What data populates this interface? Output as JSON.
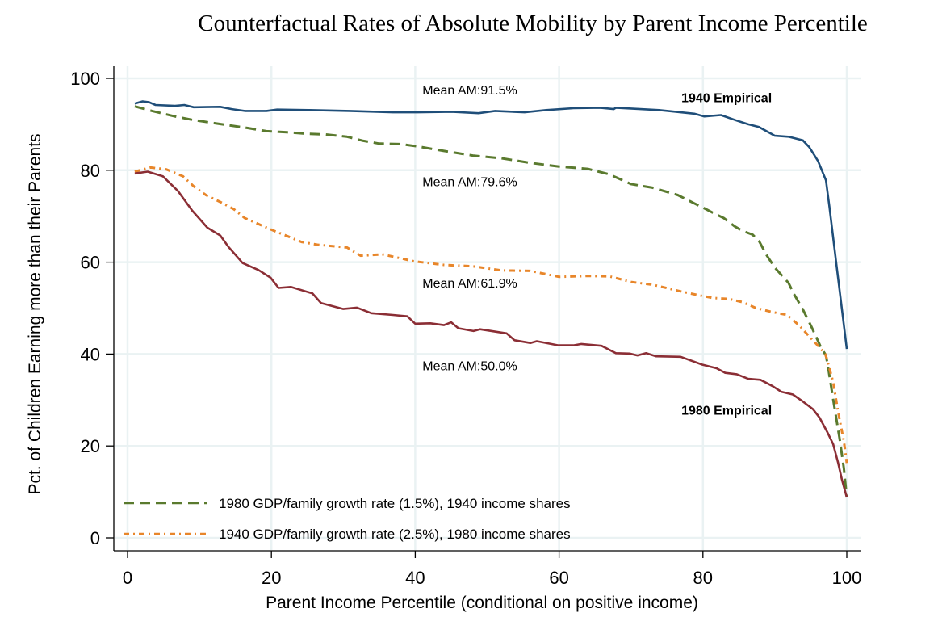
{
  "chart_data": {
    "type": "line",
    "title": "Counterfactual Rates of Absolute Mobility by Parent Income Percentile",
    "xlabel": "Parent Income Percentile (conditional on positive income)",
    "ylabel": "Pct. of Children Earning more than their Parents",
    "xlim": [
      0,
      100
    ],
    "ylim": [
      0,
      100
    ],
    "xticks": [
      0,
      20,
      40,
      60,
      80,
      100
    ],
    "yticks": [
      0,
      20,
      40,
      60,
      80,
      100
    ],
    "xtick_labels": [
      "0",
      "20",
      "40",
      "60",
      "80",
      "100"
    ],
    "ytick_labels": [
      "0",
      "20",
      "40",
      "60",
      "80",
      "100"
    ],
    "grid": true,
    "legend_position": "bottom-left",
    "series": [
      {
        "name": "1940 Empirical",
        "color": "#1f4e79",
        "style": "solid",
        "in_legend": false,
        "x": [
          1,
          2.1,
          3,
          3.9,
          6.6,
          7.9,
          9.2,
          12.9,
          14.5,
          16.3,
          19.3,
          20.8,
          25.3,
          30.9,
          36.9,
          40.3,
          45.1,
          48.8,
          51.1,
          55.2,
          58.2,
          62,
          65.7,
          67.6,
          67.9,
          71.3,
          73.9,
          76.9,
          78.8,
          80.2,
          82.5,
          84.7,
          86.3,
          87.8,
          90,
          91.9,
          93.9,
          94.8,
          96,
          97.1,
          97.6,
          98.6,
          99.3,
          100
        ],
        "y": [
          94.5,
          95.0,
          94.8,
          94.2,
          94.0,
          94.2,
          93.7,
          93.8,
          93.3,
          92.9,
          92.9,
          93.2,
          93.1,
          92.9,
          92.6,
          92.6,
          92.7,
          92.4,
          92.9,
          92.6,
          93.1,
          93.5,
          93.6,
          93.3,
          93.6,
          93.3,
          93.1,
          92.6,
          92.3,
          91.7,
          92.0,
          90.8,
          90.0,
          89.4,
          87.5,
          87.3,
          86.5,
          85.0,
          82.0,
          77.8,
          71.9,
          59.0,
          50.0,
          41.1
        ]
      },
      {
        "name": "1980 GDP/family growth rate (1.5%), 1940 income shares",
        "color": "#5a7a2e",
        "style": "dashed",
        "in_legend": true,
        "x": [
          1,
          3.4,
          6.6,
          8.9,
          11.4,
          14,
          16.7,
          19.3,
          21.9,
          25.3,
          27.5,
          30.5,
          32.8,
          35,
          38,
          40.3,
          44,
          48,
          52,
          56,
          60,
          64,
          67,
          70,
          73,
          76.5,
          78.8,
          80.1,
          81.3,
          82.9,
          84.4,
          85.5,
          86.9,
          87.8,
          88.9,
          90,
          91.9,
          92.6,
          93.9,
          95.1,
          96.4,
          97.1,
          97.5,
          98.2,
          99,
          99.6,
          100
        ],
        "y": [
          93.9,
          92.9,
          91.7,
          91.0,
          90.4,
          89.8,
          89.2,
          88.5,
          88.3,
          87.9,
          87.8,
          87.3,
          86.4,
          85.8,
          85.7,
          85.2,
          84.2,
          83.2,
          82.6,
          81.6,
          80.8,
          80.3,
          79.1,
          77.0,
          76.2,
          74.6,
          72.8,
          71.8,
          70.8,
          69.6,
          67.8,
          66.8,
          66.0,
          64.6,
          61.4,
          58.8,
          55.5,
          53.2,
          49.7,
          45.9,
          41.5,
          39.7,
          36.2,
          29.2,
          21.6,
          15.1,
          8.8
        ]
      },
      {
        "name": "1940 GDP/family growth rate (2.5%), 1980 income shares",
        "color": "#e8862a",
        "style": "dashdot",
        "in_legend": true,
        "x": [
          1,
          3.2,
          5.4,
          7.7,
          9.2,
          10.9,
          12.9,
          14.8,
          16.3,
          18.2,
          20.4,
          22.3,
          24.2,
          26.4,
          30.5,
          32.4,
          35.4,
          37.2,
          39.8,
          44,
          48,
          52,
          56,
          60,
          64,
          67,
          70,
          73,
          76.5,
          79.1,
          81.4,
          83.6,
          85.5,
          87.4,
          89.5,
          91.7,
          93.4,
          94.8,
          96.2,
          97,
          97.3,
          98.1,
          98.8,
          99.6,
          100
        ],
        "y": [
          79.7,
          80.6,
          80.2,
          78.7,
          76.5,
          74.6,
          73.1,
          71.5,
          69.6,
          68.3,
          66.8,
          65.6,
          64.4,
          63.8,
          63.2,
          61.4,
          61.7,
          61.1,
          60.2,
          59.4,
          59.1,
          58.2,
          58.1,
          56.8,
          57.0,
          56.9,
          55.7,
          55.1,
          53.8,
          52.9,
          52.2,
          52.0,
          51.3,
          50.0,
          49.2,
          48.5,
          46.2,
          43.8,
          41.5,
          40.0,
          38.6,
          33.9,
          27.4,
          21.0,
          16.3
        ]
      },
      {
        "name": "1980 Empirical",
        "color": "#8b2e35",
        "style": "solid",
        "in_legend": false,
        "x": [
          1,
          2.8,
          4.9,
          7,
          9,
          11.1,
          12.9,
          14,
          16,
          18.2,
          19.9,
          21,
          22.7,
          25.7,
          26.9,
          30,
          31.9,
          33.9,
          36.9,
          38.9,
          40,
          42.1,
          44,
          45,
          46,
          48.1,
          49,
          52.7,
          53.8,
          56,
          56.9,
          59.9,
          62,
          63.1,
          65.9,
          67.9,
          69.8,
          70.9,
          72.1,
          73.5,
          76.9,
          79.9,
          81.9,
          83.1,
          84.7,
          86.3,
          88,
          89.7,
          90.9,
          92.5,
          93.7,
          95.3,
          96.2,
          97.3,
          98.1,
          98.8,
          99.3,
          100
        ],
        "y": [
          79.3,
          79.7,
          78.7,
          75.5,
          71.2,
          67.5,
          65.8,
          63.4,
          59.8,
          58.3,
          56.6,
          54.4,
          54.6,
          53.2,
          51.1,
          49.8,
          50.1,
          48.9,
          48.5,
          48.2,
          46.6,
          46.7,
          46.3,
          46.9,
          45.6,
          45.0,
          45.4,
          44.5,
          43.0,
          42.4,
          42.8,
          41.9,
          41.9,
          42.2,
          41.8,
          40.2,
          40.1,
          39.7,
          40.2,
          39.5,
          39.4,
          37.7,
          36.9,
          35.9,
          35.6,
          34.6,
          34.4,
          33.0,
          31.8,
          31.2,
          29.9,
          28.0,
          26.2,
          23.0,
          20.4,
          16.3,
          12.8,
          8.8
        ]
      }
    ],
    "annotations": [
      {
        "text": "Mean AM:91.5%",
        "x": 41,
        "y": 96.5,
        "bold": false
      },
      {
        "text": "Mean AM:79.6%",
        "x": 41,
        "y": 76.5,
        "bold": false
      },
      {
        "text": "Mean AM:61.9%",
        "x": 41,
        "y": 54.5,
        "bold": false
      },
      {
        "text": "Mean AM:50.0%",
        "x": 41,
        "y": 36.5,
        "bold": false
      },
      {
        "text": "1940 Empirical",
        "x": 77,
        "y": 94.8,
        "bold": true
      },
      {
        "text": "1980 Empirical",
        "x": 77,
        "y": 26.8,
        "bold": true
      }
    ],
    "legend": [
      {
        "label": "1980 GDP/family growth rate (1.5%), 1940 income shares",
        "color": "#5a7a2e",
        "style": "dashed"
      },
      {
        "label": "1940 GDP/family growth rate (2.5%), 1980 income shares",
        "color": "#e8862a",
        "style": "dashdot"
      }
    ]
  }
}
